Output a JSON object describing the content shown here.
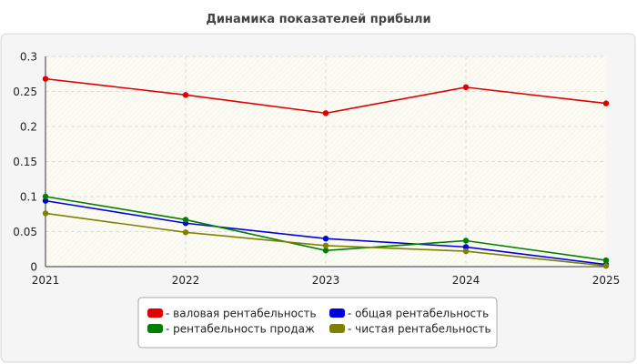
{
  "chart_data": {
    "type": "line",
    "title": "Динамика показателей прибыли",
    "xlabel": "",
    "ylabel": "",
    "categories": [
      "2021",
      "2022",
      "2023",
      "2024",
      "2025"
    ],
    "ylim": [
      0,
      0.3
    ],
    "yticks": [
      "0",
      "0.05",
      "0.1",
      "0.15",
      "0.2",
      "0.25",
      "0.3"
    ],
    "grid": true,
    "legend_position": "bottom",
    "series": [
      {
        "name": "- валовая рентабельность",
        "color": "#e00000",
        "values": [
          0.268,
          0.245,
          0.219,
          0.256,
          0.233
        ]
      },
      {
        "name": "- общая рентабельность",
        "color": "#0000e0",
        "values": [
          0.094,
          0.062,
          0.04,
          0.028,
          0.003
        ]
      },
      {
        "name": "- рентабельность продаж",
        "color": "#008000",
        "values": [
          0.1,
          0.067,
          0.023,
          0.037,
          0.009
        ]
      },
      {
        "name": "- чистая рентабельность",
        "color": "#808000",
        "values": [
          0.076,
          0.049,
          0.03,
          0.022,
          0.001
        ]
      }
    ]
  }
}
